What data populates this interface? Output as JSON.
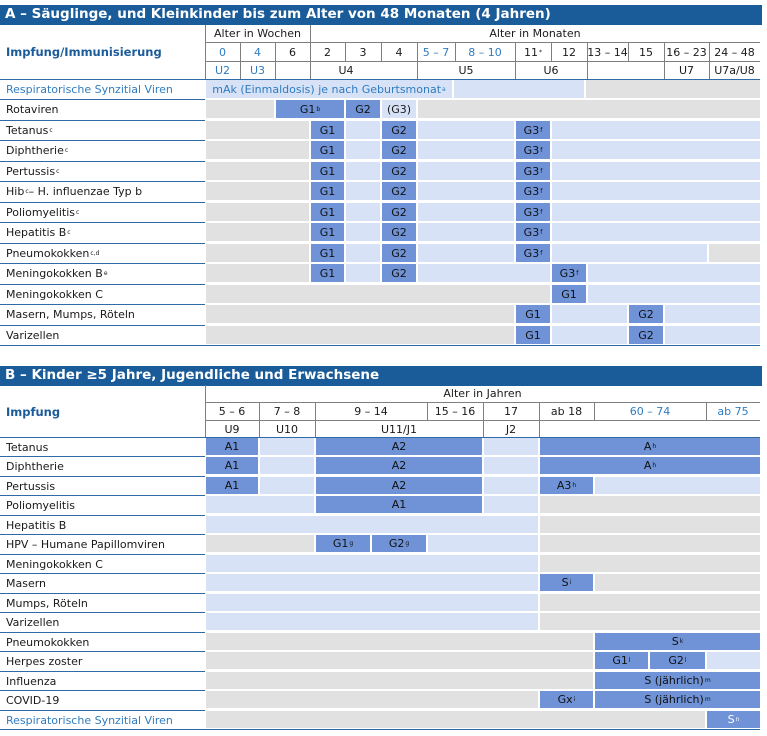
{
  "sectionA": {
    "title": "A – Säuglinge, und Kleinkinder bis zum Alter von 48 Monaten (4 Jahren)",
    "impf_label": "Impfung/Immunisierung",
    "weeks_header": "Alter in Wochen",
    "months_header": "Alter in Monaten",
    "ages": [
      "0",
      "4",
      "6",
      "2",
      "3",
      "4",
      "5 – 7",
      "8 – 10",
      "11",
      "12",
      "13 – 14",
      "15",
      "16 – 23",
      "24 – 48"
    ],
    "star": "*",
    "u_labels": [
      "U2",
      "U3",
      "U4",
      "U5",
      "U6",
      "U7",
      "U7a/U8"
    ],
    "rows": [
      "Respiratorische Synzitial Viren",
      "Rotaviren",
      "Tetanus",
      "Diphtherie",
      "Pertussis",
      "Hib",
      "Poliomyelitis",
      "Hepatitis B",
      "Pneumokokken",
      "Meningokokken B",
      "Meningokokken C",
      "Masern, Mumps, Röteln",
      "Varizellen"
    ],
    "row_sup": [
      "",
      "",
      "c",
      "c",
      "c",
      "c",
      "c",
      "c",
      "c,d",
      "e",
      "",
      "",
      ""
    ],
    "hib_rest": " – H. influenzae Typ b",
    "rsv_text": "mAk (Einmaldosis) je nach Geburtsmonat",
    "rsv_sup": "a",
    "g1": "G1",
    "g2": "G2",
    "g3": "G3",
    "g3p": "(G3)",
    "sup_b": "b",
    "sup_f": "f"
  },
  "sectionB": {
    "title": "B – Kinder ≥5 Jahre, Jugendliche und Erwachsene",
    "impf_label": "Impfung",
    "years_header": "Alter in Jahren",
    "ages": [
      "5 – 6",
      "7 – 8",
      "9 – 14",
      "15 – 16",
      "17",
      "ab 18",
      "60 – 74",
      "ab 75"
    ],
    "u_labels": [
      "U9",
      "U10",
      "U11/J1",
      "J2"
    ],
    "rows": [
      "Tetanus",
      "Diphtherie",
      "Pertussis",
      "Poliomyelitis",
      "Hepatitis B",
      "HPV – Humane Papillomviren",
      "Meningokokken C",
      "Masern",
      "Mumps, Röteln",
      "Varizellen",
      "Pneumokokken",
      "Herpes zoster",
      "Influenza",
      "COVID-19",
      "Respiratorische Synzitial Viren"
    ],
    "a1": "A1",
    "a2": "A2",
    "a": "A",
    "a3": "A3",
    "g1": "G1",
    "g2": "G2",
    "s": "S",
    "gx": "Gx",
    "s_annual": "S (jährlich)",
    "sups": {
      "h": "h",
      "g": "g",
      "i": "i",
      "k": "k",
      "l": "l",
      "m": "m",
      "n": "n"
    }
  },
  "colors": {
    "header": "#1a5c99",
    "dark_blue": "#6f93d6",
    "light_blue": "#d7e2f6",
    "grey": "#e1e1e1"
  }
}
